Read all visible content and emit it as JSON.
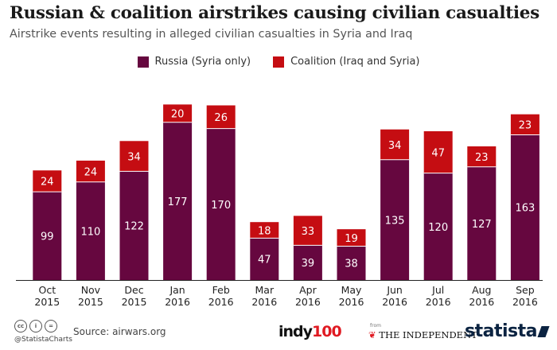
{
  "header": {
    "title": "Russian & coalition airstrikes causing civilian casualties",
    "subtitle": "Airstrike events resulting in alleged civilian casualties in Syria and Iraq"
  },
  "footer": {
    "handle": "@StatistaCharts",
    "source": "Source: airwars.org",
    "indy_prefix": "indy",
    "indy_suffix": "100",
    "from_label": "from",
    "independent_label": "THE INDEPENDENT",
    "statista_label": "statista"
  },
  "colors": {
    "russia": "#66073f",
    "coalition": "#c50d12",
    "text": "#1a1a1a"
  },
  "chart_data": {
    "type": "bar",
    "stacked": true,
    "categories": [
      [
        "Oct",
        "2015"
      ],
      [
        "Nov",
        "2015"
      ],
      [
        "Dec",
        "2015"
      ],
      [
        "Jan",
        "2016"
      ],
      [
        "Feb",
        "2016"
      ],
      [
        "Mar",
        "2016"
      ],
      [
        "Apr",
        "2016"
      ],
      [
        "May",
        "2016"
      ],
      [
        "Jun",
        "2016"
      ],
      [
        "Jul",
        "2016"
      ],
      [
        "Aug",
        "2016"
      ],
      [
        "Sep",
        "2016"
      ]
    ],
    "series": [
      {
        "name": "Russia (Syria only)",
        "values": [
          99,
          110,
          122,
          177,
          170,
          47,
          39,
          38,
          135,
          120,
          127,
          163
        ]
      },
      {
        "name": "Coalition (Iraq and Syria)",
        "values": [
          24,
          24,
          34,
          20,
          26,
          18,
          33,
          19,
          34,
          47,
          23,
          23
        ]
      }
    ],
    "ylim": [
      0,
      200
    ],
    "legend_position": "top-center",
    "grid": false
  }
}
